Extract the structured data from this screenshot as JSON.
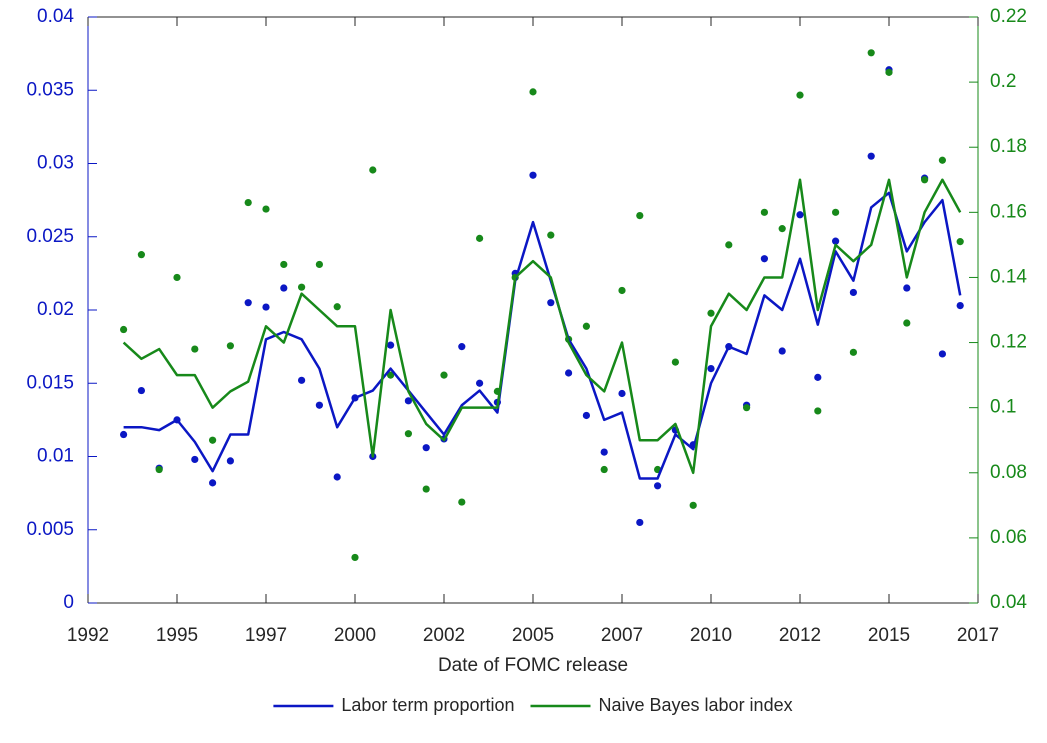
{
  "chart_data": {
    "type": "line-scatter",
    "x_label": "Date of FOMC release",
    "xlim": [
      1992,
      2017
    ],
    "xticks": [
      {
        "value": 1992,
        "label": "1992"
      },
      {
        "value": 1994.5,
        "label": "1995"
      },
      {
        "value": 1997,
        "label": "1997"
      },
      {
        "value": 1999.5,
        "label": "2000"
      },
      {
        "value": 2002,
        "label": "2002"
      },
      {
        "value": 2004.5,
        "label": "2005"
      },
      {
        "value": 2007,
        "label": "2007"
      },
      {
        "value": 2009.5,
        "label": "2010"
      },
      {
        "value": 2012,
        "label": "2012"
      },
      {
        "value": 2014.5,
        "label": "2015"
      },
      {
        "value": 2017,
        "label": "2017"
      }
    ],
    "ylim": [
      0,
      0.04
    ],
    "yticks": [
      0,
      0.005,
      0.01,
      0.015,
      0.02,
      0.025,
      0.03,
      0.035,
      0.04
    ],
    "y2lim": [
      0.04,
      0.22
    ],
    "y2ticks": [
      0.04,
      0.06,
      0.08,
      0.1,
      0.12,
      0.14,
      0.16,
      0.18,
      0.2,
      0.22
    ],
    "x": [
      1993,
      1993.5,
      1994,
      1994.5,
      1995,
      1995.5,
      1996,
      1996.5,
      1997,
      1997.5,
      1998,
      1998.5,
      1999,
      1999.5,
      2000,
      2000.5,
      2001,
      2001.5,
      2002,
      2002.5,
      2003,
      2003.5,
      2004,
      2004.5,
      2005,
      2005.5,
      2006,
      2006.5,
      2007,
      2007.5,
      2008,
      2008.5,
      2009,
      2009.5,
      2010,
      2010.5,
      2011,
      2011.5,
      2012,
      2012.5,
      2013,
      2013.5,
      2014,
      2014.5,
      2015,
      2015.5,
      2016,
      2016.5
    ],
    "legend": "bottom",
    "series": [
      {
        "name": "Labor term proportion",
        "color": "#0b17c4",
        "axis": "y",
        "values": [
          0.012,
          0.012,
          0.0118,
          0.0125,
          0.011,
          0.009,
          0.0115,
          0.0115,
          0.018,
          0.0185,
          0.018,
          0.016,
          0.012,
          0.014,
          0.0145,
          0.016,
          0.0145,
          0.013,
          0.0115,
          0.0135,
          0.0145,
          0.013,
          0.022,
          0.026,
          0.022,
          0.018,
          0.016,
          0.0125,
          0.013,
          0.0085,
          0.0085,
          0.0115,
          0.0105,
          0.015,
          0.0175,
          0.017,
          0.021,
          0.02,
          0.0235,
          0.019,
          0.024,
          0.022,
          0.027,
          0.028,
          0.024,
          0.026,
          0.0275,
          0.021
        ],
        "points": [
          0.0115,
          0.0145,
          0.0092,
          0.0125,
          0.0098,
          0.0082,
          0.0097,
          0.0205,
          0.0202,
          0.0215,
          0.0152,
          0.0135,
          0.0086,
          0.014,
          0.01,
          0.0176,
          0.0138,
          0.0106,
          0.0112,
          0.0175,
          0.015,
          0.0137,
          0.0225,
          0.0292,
          0.0205,
          0.0157,
          0.0128,
          0.0103,
          0.0143,
          0.0055,
          0.008,
          0.0118,
          0.0108,
          0.016,
          0.0175,
          0.0135,
          0.0235,
          0.0172,
          0.0265,
          0.0154,
          0.0247,
          0.0212,
          0.0305,
          0.0364,
          0.0215,
          0.029,
          0.017,
          0.0203
        ]
      },
      {
        "name": "Naive Bayes labor index",
        "color": "#17891a",
        "axis": "y2",
        "values": [
          0.12,
          0.115,
          0.118,
          0.11,
          0.11,
          0.1,
          0.105,
          0.108,
          0.125,
          0.12,
          0.135,
          0.13,
          0.125,
          0.125,
          0.085,
          0.13,
          0.105,
          0.095,
          0.09,
          0.1,
          0.1,
          0.1,
          0.14,
          0.145,
          0.14,
          0.12,
          0.11,
          0.105,
          0.12,
          0.09,
          0.09,
          0.095,
          0.08,
          0.125,
          0.135,
          0.13,
          0.14,
          0.14,
          0.17,
          0.13,
          0.15,
          0.145,
          0.15,
          0.17,
          0.14,
          0.16,
          0.17,
          0.16
        ],
        "points": [
          0.124,
          0.147,
          0.081,
          0.14,
          0.118,
          0.09,
          0.119,
          0.163,
          0.161,
          0.144,
          0.137,
          0.144,
          0.131,
          0.054,
          0.173,
          0.11,
          0.092,
          0.075,
          0.11,
          0.071,
          0.152,
          0.105,
          0.14,
          0.197,
          0.153,
          0.121,
          0.125,
          0.081,
          0.136,
          0.159,
          0.081,
          0.114,
          0.07,
          0.129,
          0.15,
          0.1,
          0.16,
          0.155,
          0.196,
          0.099,
          0.16,
          0.117,
          0.209,
          0.203,
          0.126,
          0.17,
          0.176,
          0.151
        ]
      }
    ]
  }
}
